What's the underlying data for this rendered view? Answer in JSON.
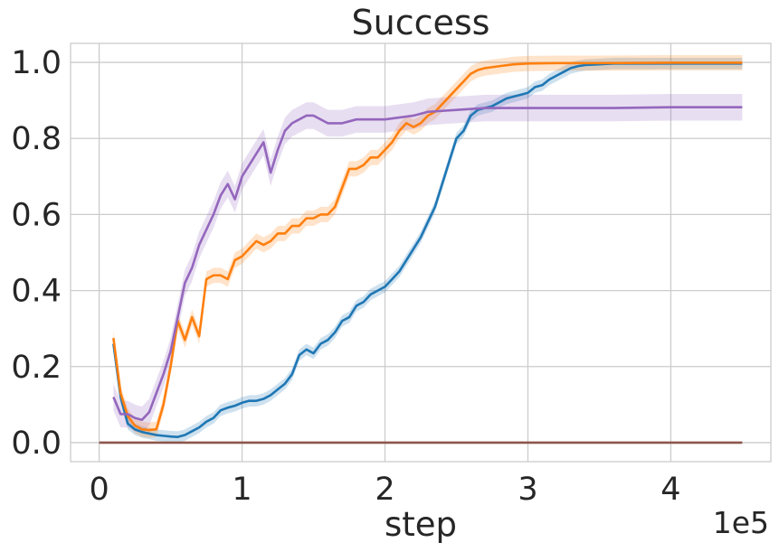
{
  "chart_data": {
    "type": "line",
    "title": "Success",
    "xlabel": "step",
    "ylabel": "",
    "x_offset_text": "1e5",
    "xlim": [
      -20000,
      470000
    ],
    "ylim": [
      -0.05,
      1.05
    ],
    "xticks": [
      0,
      100000,
      200000,
      300000,
      400000
    ],
    "xtick_labels": [
      "0",
      "1",
      "2",
      "3",
      "4"
    ],
    "yticks": [
      0.0,
      0.2,
      0.4,
      0.6,
      0.8,
      1.0
    ],
    "ytick_labels": [
      "0.0",
      "0.2",
      "0.4",
      "0.6",
      "0.8",
      "1.0"
    ],
    "grid": true,
    "legend": "none",
    "series": [
      {
        "color": "#1f77b4",
        "x": [
          10000,
          15000,
          20000,
          25000,
          30000,
          35000,
          40000,
          45000,
          50000,
          55000,
          60000,
          65000,
          70000,
          75000,
          80000,
          85000,
          90000,
          95000,
          100000,
          105000,
          110000,
          115000,
          120000,
          125000,
          130000,
          135000,
          140000,
          145000,
          150000,
          155000,
          160000,
          165000,
          170000,
          175000,
          180000,
          185000,
          190000,
          195000,
          200000,
          205000,
          210000,
          215000,
          220000,
          225000,
          230000,
          235000,
          240000,
          245000,
          250000,
          255000,
          260000,
          265000,
          270000,
          275000,
          280000,
          285000,
          290000,
          295000,
          300000,
          305000,
          310000,
          315000,
          320000,
          325000,
          330000,
          335000,
          340000,
          350000,
          360000,
          380000,
          400000,
          420000,
          450000
        ],
        "y": [
          0.26,
          0.12,
          0.05,
          0.035,
          0.028,
          0.024,
          0.02,
          0.018,
          0.016,
          0.015,
          0.02,
          0.03,
          0.04,
          0.055,
          0.065,
          0.085,
          0.092,
          0.097,
          0.105,
          0.11,
          0.11,
          0.115,
          0.125,
          0.14,
          0.155,
          0.18,
          0.23,
          0.245,
          0.235,
          0.26,
          0.27,
          0.29,
          0.32,
          0.33,
          0.36,
          0.37,
          0.39,
          0.4,
          0.41,
          0.43,
          0.45,
          0.48,
          0.51,
          0.54,
          0.58,
          0.62,
          0.68,
          0.74,
          0.8,
          0.82,
          0.86,
          0.875,
          0.88,
          0.885,
          0.895,
          0.905,
          0.91,
          0.915,
          0.92,
          0.935,
          0.94,
          0.955,
          0.965,
          0.975,
          0.985,
          0.99,
          0.993,
          0.995,
          0.997,
          0.997,
          0.997,
          0.997,
          0.997
        ],
        "band": 0.015
      },
      {
        "color": "#ff7f0e",
        "x": [
          10000,
          15000,
          20000,
          25000,
          30000,
          35000,
          40000,
          45000,
          50000,
          55000,
          60000,
          65000,
          70000,
          75000,
          80000,
          85000,
          90000,
          95000,
          100000,
          105000,
          110000,
          115000,
          120000,
          125000,
          130000,
          135000,
          140000,
          145000,
          150000,
          155000,
          160000,
          165000,
          170000,
          175000,
          180000,
          185000,
          190000,
          195000,
          200000,
          205000,
          210000,
          215000,
          220000,
          225000,
          230000,
          235000,
          240000,
          245000,
          250000,
          255000,
          260000,
          265000,
          270000,
          280000,
          290000,
          300000,
          320000,
          350000,
          400000,
          450000
        ],
        "y": [
          0.275,
          0.13,
          0.07,
          0.045,
          0.035,
          0.033,
          0.035,
          0.1,
          0.2,
          0.32,
          0.27,
          0.33,
          0.28,
          0.43,
          0.44,
          0.44,
          0.43,
          0.48,
          0.49,
          0.51,
          0.53,
          0.52,
          0.53,
          0.55,
          0.55,
          0.57,
          0.57,
          0.59,
          0.59,
          0.6,
          0.6,
          0.62,
          0.67,
          0.72,
          0.72,
          0.73,
          0.75,
          0.75,
          0.77,
          0.79,
          0.82,
          0.84,
          0.83,
          0.84,
          0.86,
          0.87,
          0.89,
          0.91,
          0.93,
          0.95,
          0.97,
          0.98,
          0.985,
          0.99,
          0.995,
          0.997,
          0.998,
          0.998,
          0.999,
          0.999
        ],
        "band": 0.02
      },
      {
        "color": "#9467bd",
        "x": [
          10000,
          15000,
          20000,
          25000,
          30000,
          35000,
          40000,
          45000,
          50000,
          55000,
          60000,
          65000,
          70000,
          75000,
          80000,
          85000,
          90000,
          95000,
          100000,
          105000,
          110000,
          115000,
          120000,
          125000,
          130000,
          135000,
          140000,
          145000,
          150000,
          160000,
          170000,
          180000,
          190000,
          200000,
          210000,
          220000,
          230000,
          250000,
          270000,
          300000,
          330000,
          360000,
          400000,
          450000
        ],
        "y": [
          0.12,
          0.075,
          0.075,
          0.065,
          0.06,
          0.08,
          0.13,
          0.18,
          0.24,
          0.33,
          0.42,
          0.46,
          0.52,
          0.56,
          0.6,
          0.65,
          0.68,
          0.64,
          0.7,
          0.73,
          0.76,
          0.79,
          0.71,
          0.77,
          0.82,
          0.84,
          0.85,
          0.86,
          0.86,
          0.84,
          0.84,
          0.85,
          0.85,
          0.85,
          0.855,
          0.86,
          0.87,
          0.875,
          0.88,
          0.88,
          0.88,
          0.88,
          0.882,
          0.882
        ],
        "band": 0.035
      },
      {
        "color": "#8c564b",
        "x": [
          0,
          450000
        ],
        "y": [
          0.0,
          0.0
        ],
        "band": 0
      }
    ]
  }
}
